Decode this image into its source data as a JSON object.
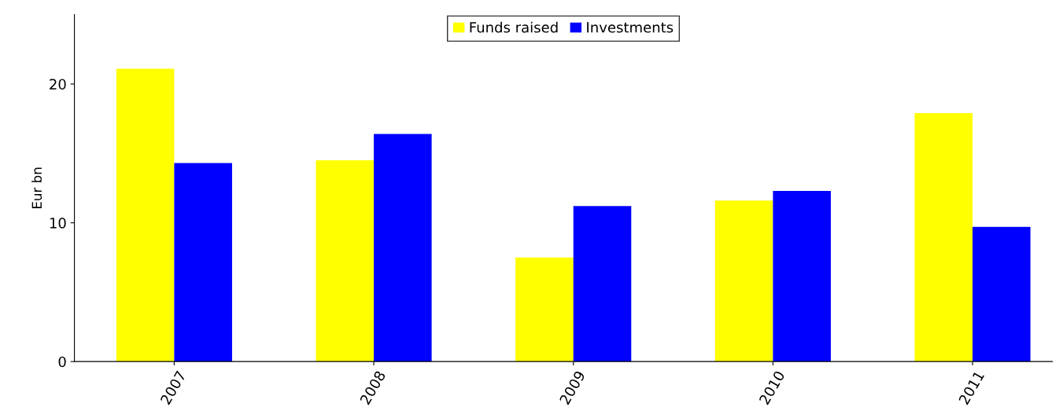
{
  "chart_data": {
    "type": "bar",
    "ylabel": "Eur bn",
    "categories": [
      "2007",
      "2008",
      "2009",
      "2010",
      "2011"
    ],
    "series": [
      {
        "name": "Funds raised",
        "color": "#ffff00",
        "values": [
          21.1,
          14.5,
          7.5,
          11.6,
          17.9
        ]
      },
      {
        "name": "Investments",
        "color": "#0000ff",
        "values": [
          14.3,
          16.4,
          11.2,
          12.3,
          9.7
        ]
      }
    ],
    "ylim": [
      0,
      25
    ],
    "yticks": [
      0,
      10,
      20
    ],
    "grid": false,
    "legend": "top"
  }
}
